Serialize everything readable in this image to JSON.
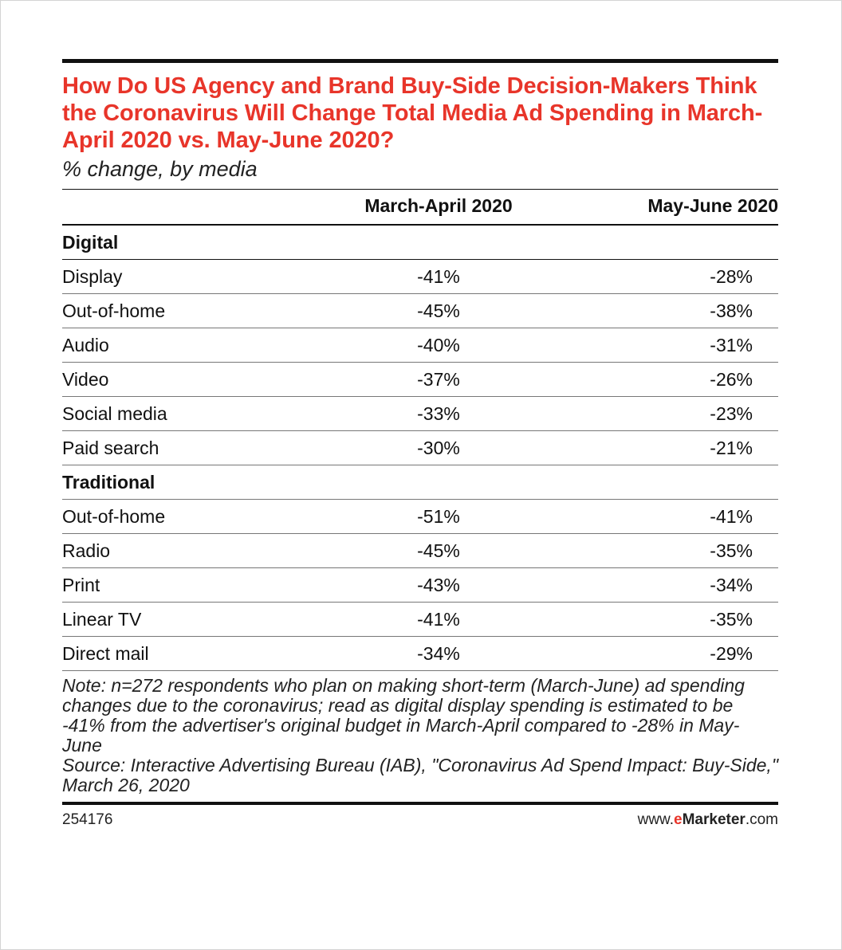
{
  "title": "How Do US Agency and Brand Buy-Side Decision-Makers Think the Coronavirus Will Change Total Media Ad Spending in March-April 2020 vs. May-June 2020?",
  "subtitle": "% change, by media",
  "colors": {
    "title": "#e8352a",
    "rule": "#111111"
  },
  "chart_data": {
    "type": "table",
    "columns": [
      "",
      "March-April 2020",
      "May-June 2020"
    ],
    "groups": [
      {
        "name": "Digital",
        "rows": [
          {
            "label": "Display",
            "march_april": "-41%",
            "may_june": "-28%"
          },
          {
            "label": "Out-of-home",
            "march_april": "-45%",
            "may_june": "-38%"
          },
          {
            "label": "Audio",
            "march_april": "-40%",
            "may_june": "-31%"
          },
          {
            "label": "Video",
            "march_april": "-37%",
            "may_june": "-26%"
          },
          {
            "label": "Social media",
            "march_april": "-33%",
            "may_june": "-23%"
          },
          {
            "label": "Paid search",
            "march_april": "-30%",
            "may_june": "-21%"
          }
        ]
      },
      {
        "name": "Traditional",
        "rows": [
          {
            "label": "Out-of-home",
            "march_april": "-51%",
            "may_june": "-41%"
          },
          {
            "label": "Radio",
            "march_april": "-45%",
            "may_june": "-35%"
          },
          {
            "label": "Print",
            "march_april": "-43%",
            "may_june": "-34%"
          },
          {
            "label": "Linear TV",
            "march_april": "-41%",
            "may_june": "-35%"
          },
          {
            "label": "Direct mail",
            "march_april": "-34%",
            "may_june": "-29%"
          }
        ]
      }
    ]
  },
  "note": "Note: n=272 respondents who plan on making short-term (March-June) ad spending changes due to the coronavirus; read as digital display spending is estimated to be -41% from the advertiser's original budget in March-April compared to -28% in May-June",
  "source": "Source: Interactive Advertising Bureau (IAB), \"Coronavirus Ad Spend Impact: Buy-Side,\" March 26, 2020",
  "footer": {
    "chart_id": "254176",
    "brand_prefix": "www.",
    "brand_e": "e",
    "brand_name": "Marketer",
    "brand_suffix": ".com"
  }
}
